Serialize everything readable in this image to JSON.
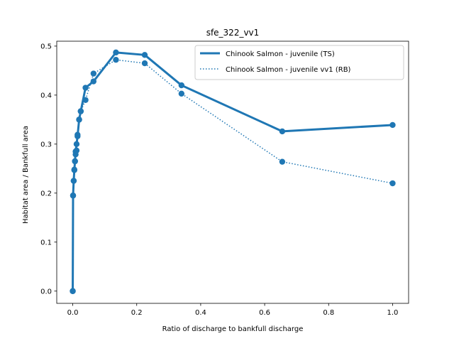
{
  "chart_data": {
    "type": "line",
    "title": "sfe_322_vv1",
    "xlabel": "Ratio of discharge to bankfull discharge",
    "ylabel": "Habitat area / Bankfull area",
    "xlim": [
      -0.05,
      1.05
    ],
    "ylim": [
      -0.025,
      0.51
    ],
    "xticks": [
      0.0,
      0.2,
      0.4,
      0.6,
      0.8,
      1.0
    ],
    "xtick_labels": [
      "0.0",
      "0.2",
      "0.4",
      "0.6",
      "0.8",
      "1.0"
    ],
    "yticks": [
      0.0,
      0.1,
      0.2,
      0.3,
      0.4,
      0.5
    ],
    "ytick_labels": [
      "0.0",
      "0.1",
      "0.2",
      "0.3",
      "0.4",
      "0.5"
    ],
    "grid": false,
    "legend_position": "top-right",
    "series": [
      {
        "name": "Chinook Salmon - juvenile (TS)",
        "style": "solid",
        "color": "#1f77b4",
        "x": [
          0.0,
          0.001,
          0.003,
          0.005,
          0.007,
          0.009,
          0.012,
          0.015,
          0.02,
          0.025,
          0.04,
          0.065,
          0.135,
          0.225,
          0.34,
          0.655,
          1.0
        ],
        "y": [
          0.0,
          0.195,
          0.225,
          0.247,
          0.265,
          0.285,
          0.3,
          0.316,
          0.35,
          0.367,
          0.415,
          0.428,
          0.487,
          0.482,
          0.42,
          0.326,
          0.339
        ]
      },
      {
        "name": "Chinook Salmon - juvenile vv1 (RB)",
        "style": "dotted",
        "color": "#1f77b4",
        "x": [
          0.0,
          0.001,
          0.003,
          0.005,
          0.007,
          0.009,
          0.012,
          0.015,
          0.02,
          0.025,
          0.04,
          0.065,
          0.135,
          0.225,
          0.34,
          0.655,
          1.0
        ],
        "y": [
          0.0,
          0.195,
          0.225,
          0.248,
          0.265,
          0.279,
          0.287,
          0.319,
          0.35,
          0.367,
          0.39,
          0.444,
          0.472,
          0.465,
          0.403,
          0.264,
          0.22
        ]
      }
    ]
  }
}
